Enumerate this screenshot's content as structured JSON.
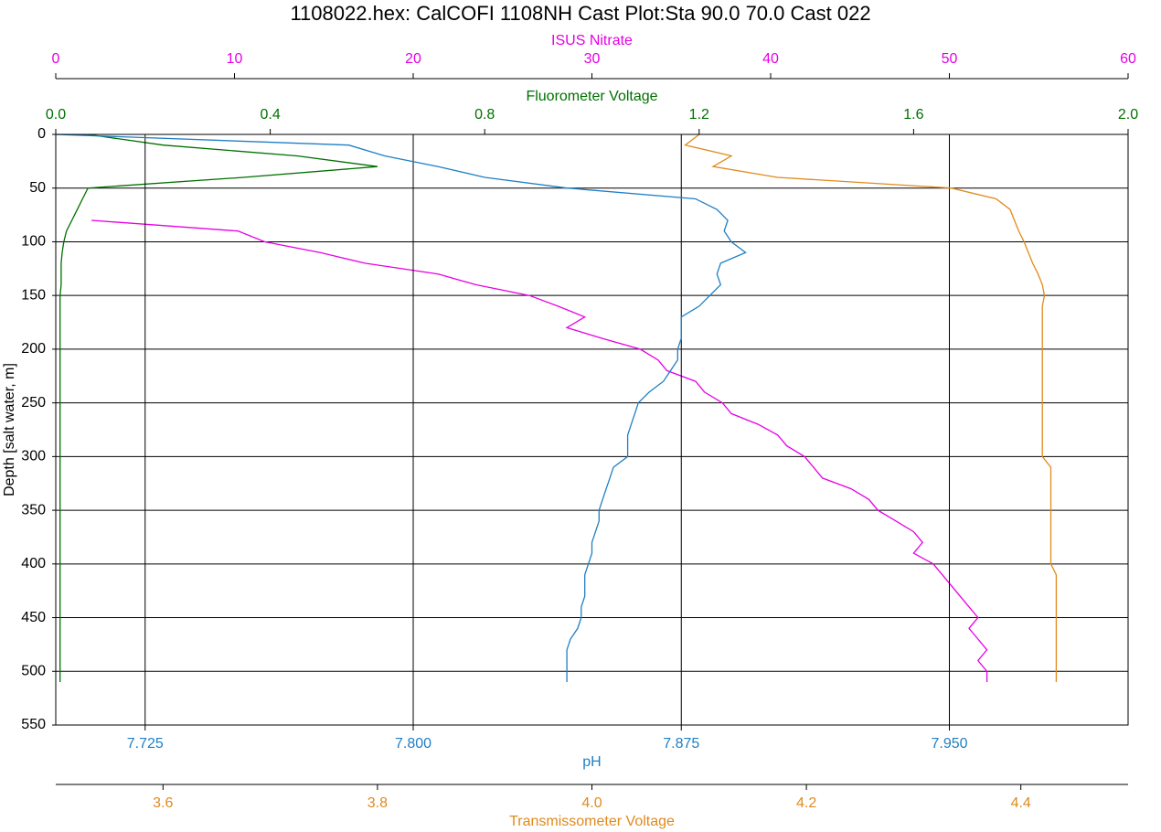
{
  "chart_data": {
    "type": "line",
    "title": "1108022.hex: CalCOFI 1108NH Cast Plot:Sta 90.0 70.0 Cast 022",
    "ylabel": "Depth [salt water, m]",
    "ylim": [
      0,
      550
    ],
    "yticks": [
      0,
      50,
      100,
      150,
      200,
      250,
      300,
      350,
      400,
      450,
      500,
      550
    ],
    "y_inverted": true,
    "grid": true,
    "y": [
      0,
      10,
      20,
      30,
      40,
      50,
      60,
      70,
      80,
      90,
      100,
      110,
      120,
      130,
      140,
      150,
      160,
      170,
      180,
      190,
      200,
      210,
      220,
      230,
      240,
      250,
      260,
      270,
      280,
      290,
      300,
      310,
      320,
      330,
      340,
      350,
      360,
      370,
      380,
      390,
      400,
      410,
      420,
      430,
      440,
      450,
      460,
      470,
      480,
      490,
      500,
      510
    ],
    "series": [
      {
        "name": "ISUS Nitrate",
        "color": "#e600e6",
        "axis_position": "top",
        "xlim": [
          0,
          60
        ],
        "xticks": [
          0,
          10,
          20,
          30,
          40,
          50,
          60
        ],
        "values": [
          null,
          null,
          null,
          null,
          null,
          null,
          null,
          null,
          2.0,
          10.2,
          11.7,
          14.8,
          17.3,
          21.4,
          23.5,
          26.5,
          28.1,
          29.6,
          28.6,
          30.6,
          32.7,
          33.7,
          34.2,
          35.8,
          36.3,
          37.3,
          37.8,
          39.3,
          40.4,
          40.9,
          41.9,
          42.4,
          42.9,
          44.5,
          45.5,
          46.0,
          47.0,
          48.0,
          48.5,
          48.0,
          49.1,
          49.6,
          50.1,
          50.6,
          51.1,
          51.6,
          51.1,
          51.6,
          52.1,
          51.6,
          52.1,
          52.1
        ]
      },
      {
        "name": "Fluorometer Voltage",
        "color": "#007000",
        "axis_position": "top",
        "xlim": [
          0,
          2
        ],
        "xticks": [
          {
            "value": 0,
            "label": "0.0"
          },
          0.4,
          0.8,
          1.2,
          1.6,
          {
            "value": 2,
            "label": "2.0"
          }
        ],
        "values": [
          0.06,
          0.2,
          0.45,
          0.6,
          0.35,
          0.06,
          0.05,
          0.04,
          0.03,
          0.02,
          0.015,
          0.012,
          0.01,
          0.01,
          0.01,
          0.008,
          0.008,
          0.008,
          0.008,
          0.008,
          0.008,
          0.008,
          0.008,
          0.008,
          0.008,
          0.008,
          0.008,
          0.008,
          0.008,
          0.008,
          0.008,
          0.008,
          0.008,
          0.008,
          0.008,
          0.008,
          0.008,
          0.008,
          0.008,
          0.008,
          0.008,
          0.008,
          0.008,
          0.008,
          0.008,
          0.008,
          0.008,
          0.008,
          0.008,
          0.008,
          0.008,
          0.008
        ]
      },
      {
        "name": "pH",
        "color": "#1f7fc4",
        "axis_position": "bottom",
        "xlim": [
          7.7,
          8.0
        ],
        "xticks": [
          7.725,
          {
            "value": 7.8,
            "label": "7.800"
          },
          7.875,
          {
            "value": 7.95,
            "label": "7.950"
          }
        ],
        "values": [
          7.7,
          7.782,
          7.792,
          7.807,
          7.82,
          7.843,
          7.879,
          7.885,
          7.888,
          7.887,
          7.889,
          7.893,
          7.886,
          7.885,
          7.886,
          7.883,
          7.88,
          7.875,
          7.875,
          7.875,
          7.874,
          7.874,
          7.872,
          7.87,
          7.866,
          7.863,
          7.862,
          7.861,
          7.86,
          7.86,
          7.86,
          7.856,
          7.855,
          7.854,
          7.853,
          7.852,
          7.852,
          7.851,
          7.85,
          7.85,
          7.849,
          7.848,
          7.848,
          7.848,
          7.847,
          7.847,
          7.846,
          7.844,
          7.843,
          7.843,
          7.843,
          7.843
        ]
      },
      {
        "name": "Transmissometer Voltage",
        "color": "#e08a1c",
        "axis_position": "bottom",
        "xlim": [
          3.5,
          4.5
        ],
        "xticks": [
          3.6,
          3.8,
          {
            "value": 4,
            "label": "4.0"
          },
          4.2,
          4.4
        ],
        "values": [
          4.1,
          4.087,
          4.13,
          4.113,
          4.173,
          4.335,
          4.377,
          4.39,
          4.394,
          4.398,
          4.403,
          4.407,
          4.411,
          4.416,
          4.42,
          4.422,
          4.42,
          4.42,
          4.42,
          4.42,
          4.42,
          4.42,
          4.42,
          4.42,
          4.42,
          4.42,
          4.42,
          4.42,
          4.42,
          4.42,
          4.42,
          4.428,
          4.428,
          4.428,
          4.428,
          4.428,
          4.428,
          4.428,
          4.428,
          4.428,
          4.428,
          4.433,
          4.433,
          4.433,
          4.433,
          4.433,
          4.433,
          4.433,
          4.433,
          4.433,
          4.433,
          4.433
        ]
      }
    ]
  }
}
